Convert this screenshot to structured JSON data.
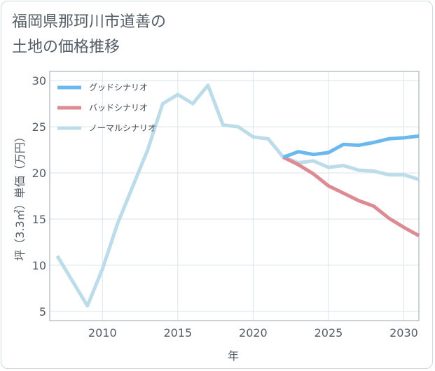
{
  "title_lines": [
    "福岡県那珂川市道善の",
    "土地の価格推移"
  ],
  "chart_data": {
    "type": "line",
    "title": "福岡県那珂川市道善の土地の価格推移",
    "xlabel": "年",
    "ylabel": "坪（3.3㎡）単価（万円）",
    "xlim": [
      2006.5,
      2031
    ],
    "ylim": [
      4,
      31
    ],
    "x_ticks": [
      2010,
      2015,
      2020,
      2025,
      2030
    ],
    "y_ticks": [
      5,
      10,
      15,
      20,
      25,
      30
    ],
    "grid": true,
    "legend_position": "top-left",
    "series": [
      {
        "name": "グッドシナリオ",
        "color": "#6bb8ee",
        "x": [
          2022,
          2023,
          2024,
          2025,
          2026,
          2027,
          2028,
          2029,
          2030,
          2031
        ],
        "y": [
          21.7,
          22.3,
          22.0,
          22.2,
          23.1,
          23.0,
          23.3,
          23.7,
          23.8,
          24.0
        ]
      },
      {
        "name": "バッドシナリオ",
        "color": "#dd8a93",
        "x": [
          2022,
          2023,
          2024,
          2025,
          2026,
          2027,
          2028,
          2029,
          2030,
          2031
        ],
        "y": [
          21.7,
          20.9,
          19.9,
          18.6,
          17.8,
          17.0,
          16.4,
          15.1,
          14.1,
          13.2
        ]
      },
      {
        "name": "ノーマルシナリオ",
        "color": "#bcdcea",
        "x": [
          2007,
          2008,
          2009,
          2010,
          2011,
          2012,
          2013,
          2014,
          2015,
          2016,
          2017,
          2018,
          2019,
          2020,
          2021,
          2022,
          2023,
          2024,
          2025,
          2026,
          2027,
          2028,
          2029,
          2030,
          2031
        ],
        "y": [
          11.0,
          8.3,
          5.6,
          9.6,
          14.5,
          18.5,
          22.5,
          27.5,
          28.5,
          27.5,
          29.5,
          25.2,
          25.0,
          23.9,
          23.7,
          21.7,
          21.1,
          21.3,
          20.6,
          20.8,
          20.3,
          20.2,
          19.8,
          19.8,
          19.3
        ]
      }
    ]
  }
}
